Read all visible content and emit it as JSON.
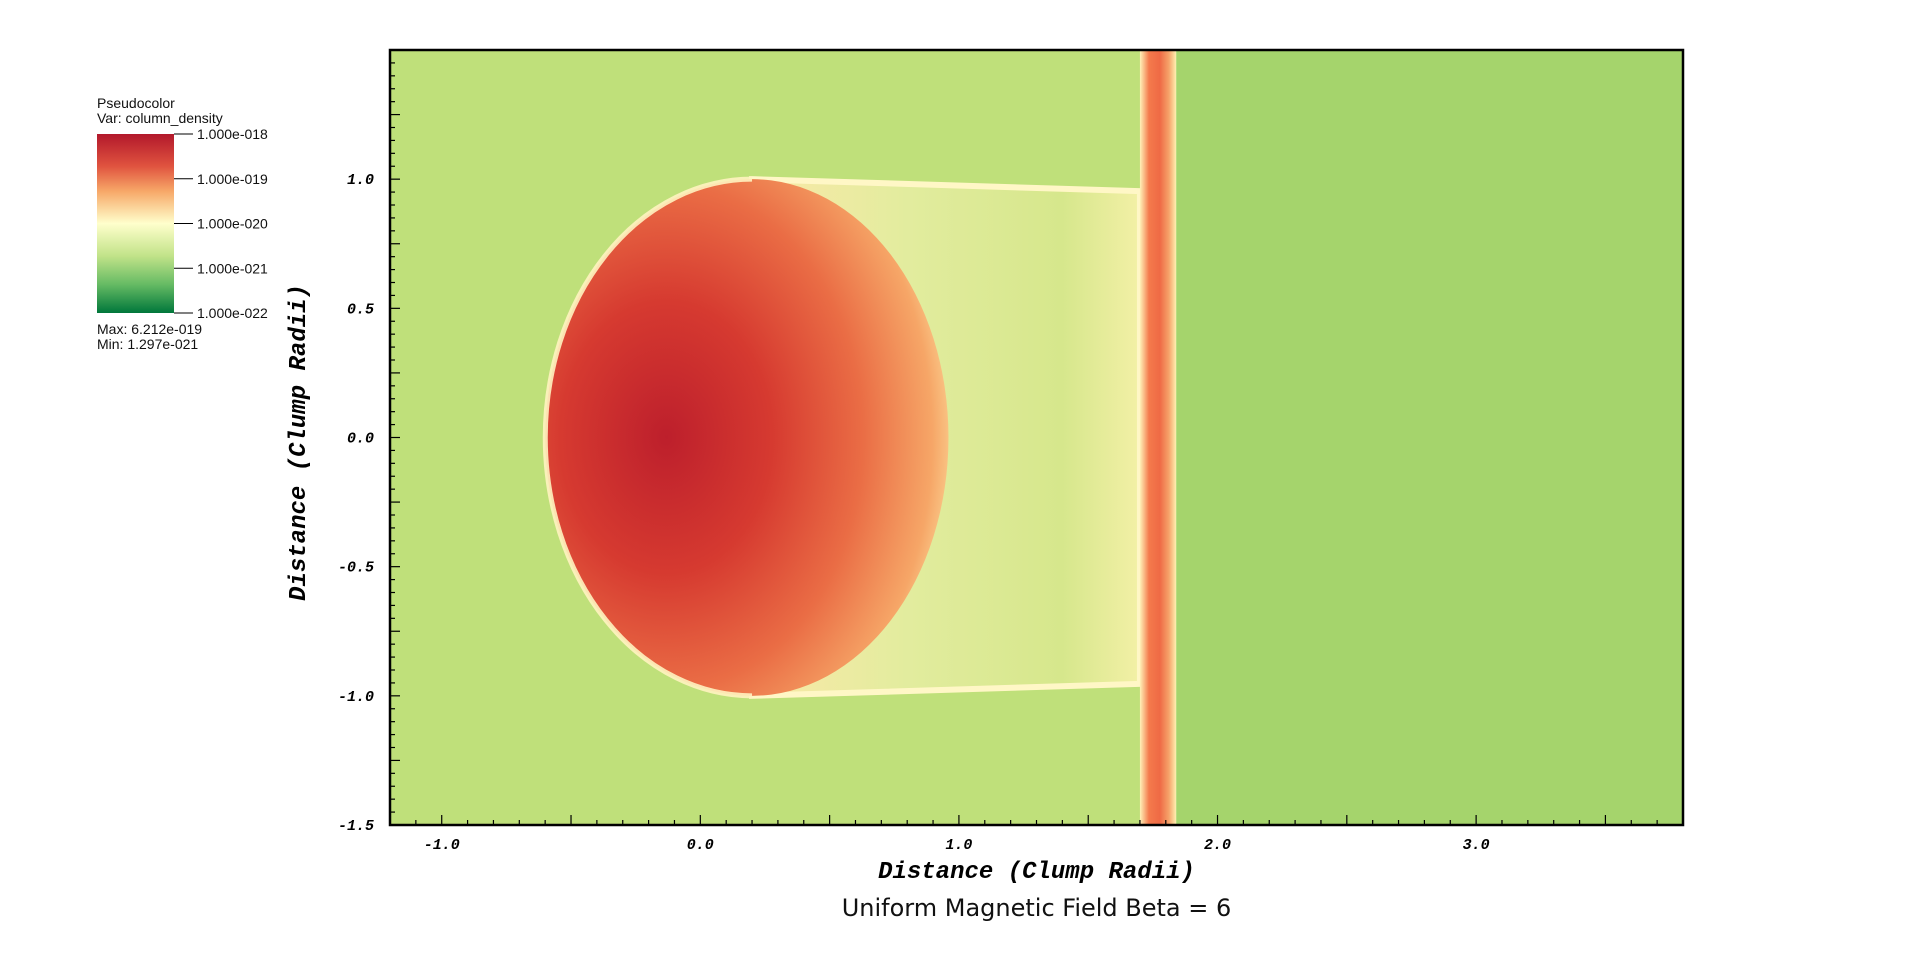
{
  "chart_data": {
    "type": "heatmap",
    "title": "Uniform Magnetic Field Beta = 6",
    "xlabel": "Distance (Clump Radii)",
    "ylabel": "Distance (Clump Radii)",
    "xlim": [
      -1.2,
      3.8
    ],
    "ylim": [
      -1.5,
      1.5
    ],
    "x_ticks": [
      "-1.0",
      "0.0",
      "1.0",
      "2.0",
      "3.0"
    ],
    "x_tick_values": [
      -1.0,
      0.0,
      1.0,
      2.0,
      3.0
    ],
    "y_ticks": [
      "1.0",
      "0.5",
      "0.0",
      "-0.5",
      "-1.0",
      "-1.5"
    ],
    "y_tick_values": [
      1.0,
      0.5,
      0.0,
      -0.5,
      -1.0,
      -1.5
    ],
    "colormap": "red-yellow-green (log scale)",
    "colors": {
      "high": "#b71c2b",
      "upper": "#f4a261",
      "mid": "#fff5c2",
      "lower": "#c3e08a",
      "low": "#1a8a4a",
      "background_left": "#bfe07a",
      "background_right": "#a5d46c"
    },
    "features": {
      "clump_center_x": -0.1,
      "clump_center_y": 0.0,
      "clump_front_x": -0.6,
      "clump_back_x": 1.0,
      "tail_end_x": 1.7,
      "tail_half_width": 1.0,
      "sheet_x": 1.77,
      "sheet_half_width": 0.07
    }
  },
  "legend": {
    "plot_type": "Pseudocolor",
    "variable": "Var: column_density",
    "labels": [
      "1.000e-018",
      "1.000e-019",
      "1.000e-020",
      "1.000e-021",
      "1.000e-022"
    ],
    "max": "Max:  6.212e-019",
    "min": "Min:  1.297e-021"
  }
}
